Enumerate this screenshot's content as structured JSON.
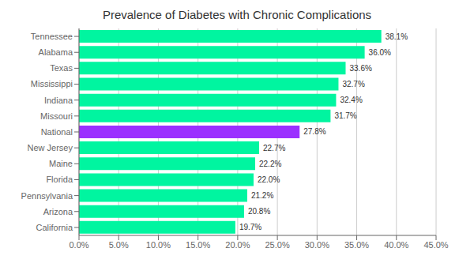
{
  "chart_data": {
    "type": "bar",
    "title": "Prevalence of Diabetes with Chronic Complications",
    "orientation": "horizontal",
    "categories": [
      "California",
      "Arizona",
      "Pennsylvania",
      "Florida",
      "Maine",
      "New Jersey",
      "National",
      "Missouri",
      "Indiana",
      "Mississippi",
      "Texas",
      "Alabama",
      "Tennessee"
    ],
    "values": [
      19.7,
      20.8,
      21.2,
      22.0,
      22.2,
      22.7,
      27.8,
      31.7,
      32.4,
      32.7,
      33.6,
      36.0,
      38.1
    ],
    "value_labels": [
      "19.7%",
      "20.8%",
      "21.2%",
      "22.0%",
      "22.2%",
      "22.7%",
      "27.8%",
      "31.7%",
      "32.4%",
      "32.7%",
      "33.6%",
      "36.0%",
      "38.1%"
    ],
    "colors": [
      "#00f5a0",
      "#00f5a0",
      "#00f5a0",
      "#00f5a0",
      "#00f5a0",
      "#00f5a0",
      "#9b30ff",
      "#00f5a0",
      "#00f5a0",
      "#00f5a0",
      "#00f5a0",
      "#00f5a0",
      "#00f5a0"
    ],
    "xlim": [
      0,
      45
    ],
    "xticks": [
      {
        "value": 0,
        "label": "0.0%"
      },
      {
        "value": 5,
        "label": "5.0%"
      },
      {
        "value": 10,
        "label": "10.0%"
      },
      {
        "value": 15,
        "label": "15.0%"
      },
      {
        "value": 20,
        "label": "20.0%"
      },
      {
        "value": 25,
        "label": "25.0%"
      },
      {
        "value": 30,
        "label": "30.0%"
      },
      {
        "value": 35,
        "label": "35.0%"
      },
      {
        "value": 40,
        "label": "40.0%"
      },
      {
        "value": 45,
        "label": "45.0%"
      }
    ],
    "grid": true,
    "data_labels": true
  }
}
